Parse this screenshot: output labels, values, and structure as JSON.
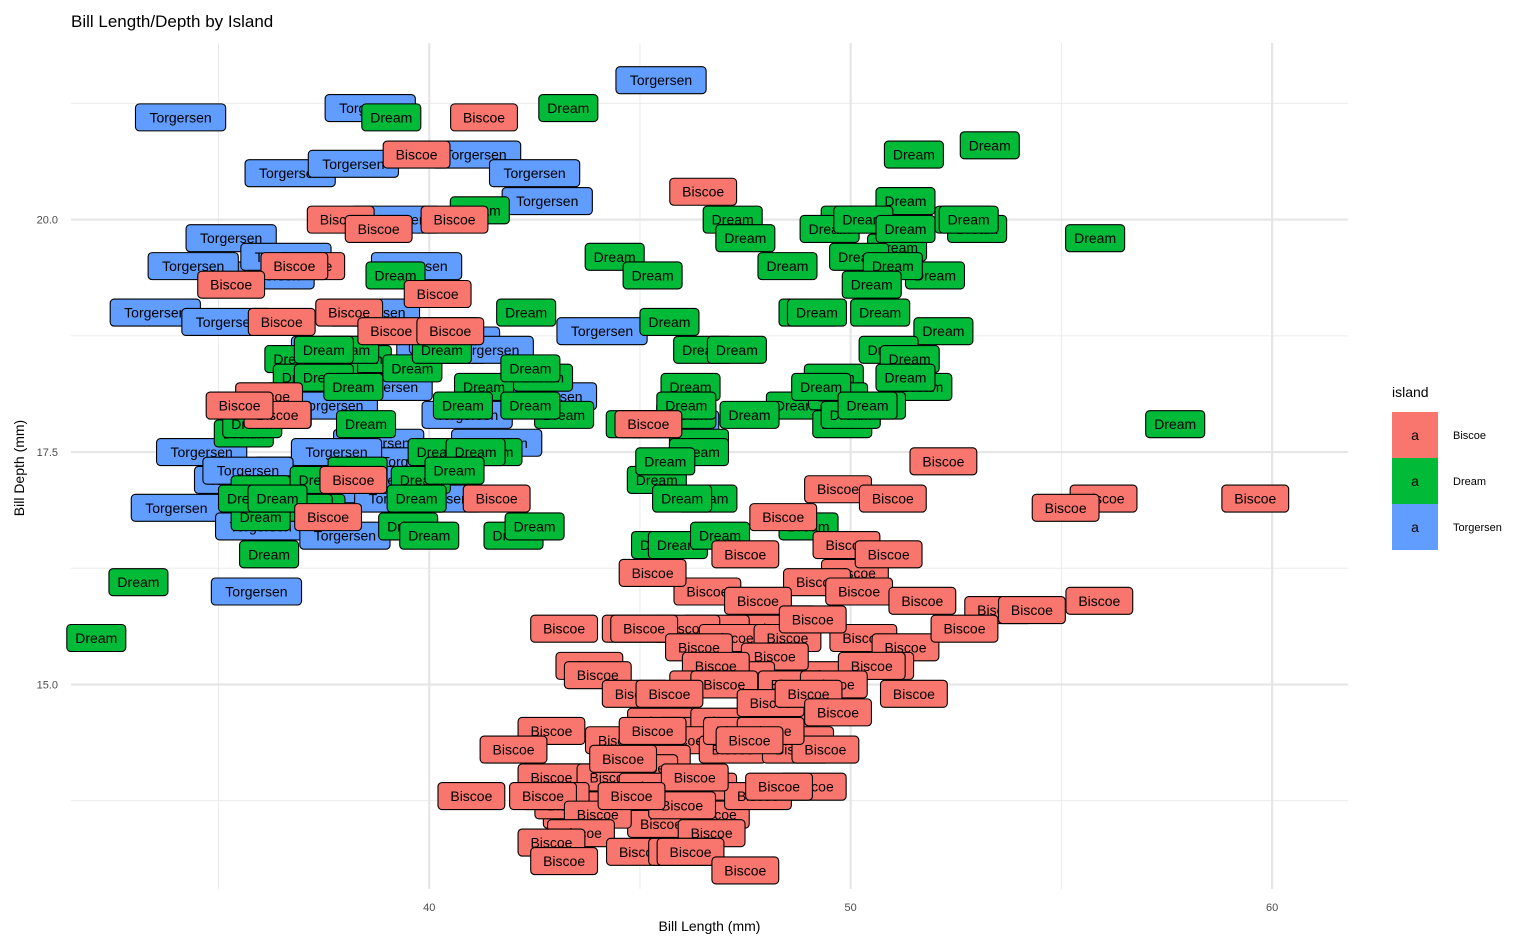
{
  "chart_data": {
    "type": "scatter",
    "geom": "label",
    "title": "Bill Length/Depth by Island",
    "xlabel": "Bill Length (mm)",
    "ylabel": "Bill Depth (mm)",
    "xlim": [
      31.5,
      61.8
    ],
    "ylim": [
      12.8,
      21.9
    ],
    "xticks": [
      40,
      50,
      60
    ],
    "xtick_labels": [
      "40",
      "50",
      "60"
    ],
    "yticks": [
      15.0,
      17.5,
      20.0
    ],
    "ytick_labels": [
      "15.0",
      "17.5",
      "20.0"
    ],
    "grid": true,
    "legend": {
      "title": "island",
      "position": "right",
      "key_symbol": "a",
      "entries": [
        "Biscoe",
        "Dream",
        "Torgersen"
      ]
    },
    "colors": {
      "Biscoe": "#F8766D",
      "Dream": "#00BA38",
      "Torgersen": "#619CFF"
    },
    "series": [
      {
        "name": "Torgersen",
        "x": [
          45.5,
          34.1,
          38.6,
          41.1,
          36.7,
          42.5,
          38.2,
          39.2,
          35.3,
          42.8,
          33.5,
          36.2,
          39.7,
          36.6,
          34.4,
          37.8,
          40.3,
          38.7,
          44.1,
          35.2,
          40.6,
          39.0,
          41.4,
          40.9,
          37.2,
          37.7,
          38.8,
          36.9,
          38.9,
          34.6,
          37.3,
          35.5,
          34.0,
          36.0,
          39.6,
          39.3,
          41.6,
          39.1,
          40.2,
          38.0,
          42.9,
          35.9,
          45.8,
          37.8,
          35.7
        ],
        "y": [
          21.5,
          21.1,
          21.2,
          20.7,
          20.5,
          20.5,
          20.6,
          20.0,
          19.8,
          20.2,
          19.0,
          19.4,
          19.5,
          19.6,
          19.5,
          18.6,
          18.6,
          19.0,
          18.8,
          18.9,
          18.7,
          18.2,
          18.6,
          17.9,
          18.1,
          18.0,
          17.6,
          17.3,
          17.2,
          17.5,
          17.1,
          17.2,
          16.9,
          16.7,
          17.4,
          17.0,
          17.6,
          17.2,
          17.0,
          16.6,
          18.1,
          16.0,
          17.8,
          17.5,
          17.3
        ]
      },
      {
        "name": "Dream",
        "x": [
          43.3,
          39.1,
          41.2,
          41.3,
          44.4,
          45.3,
          47.2,
          51.5,
          53.3,
          51.3,
          50.0,
          49.5,
          51.1,
          52.7,
          50.3,
          53.0,
          55.8,
          48.5,
          52.0,
          50.2,
          51.0,
          50.5,
          49.0,
          42.3,
          45.7,
          40.5,
          38.4,
          37.6,
          39.6,
          36.8,
          38.1,
          40.3,
          37.0,
          42.7,
          46.5,
          47.3,
          49.2,
          50.7,
          52.2,
          50.9,
          51.4,
          48.7,
          51.7,
          49.6,
          50.6,
          49.7,
          50.0,
          49.8,
          40.8,
          43.2,
          37.5,
          36.2,
          40.2,
          44.9,
          39.8,
          35.6,
          38.3,
          36.3,
          39.7,
          37.3,
          46.4,
          45.2,
          46.1,
          46.4,
          47.6,
          41.5,
          45.4,
          52.8,
          51.3,
          47.5,
          49.3,
          50.0,
          39.2,
          33.1,
          36.0,
          37.0,
          41.1,
          42.0,
          39.5,
          37.4,
          40.0,
          45.5,
          49.0,
          50.4,
          45.9,
          46.6,
          45.6,
          46.2,
          46.9,
          42.5,
          46.0,
          38.2,
          36.0,
          36.5,
          42.4,
          35.7,
          32.1,
          57.7,
          36.2,
          42.4,
          35.8,
          40.6,
          46.1,
          36.4,
          51.3,
          38.5,
          37.5
        ],
        "y": [
          21.2,
          21.1,
          20.1,
          18.2,
          19.6,
          19.4,
          20.0,
          20.7,
          20.8,
          20.2,
          20.0,
          19.9,
          19.7,
          20.0,
          20.0,
          19.9,
          19.8,
          19.5,
          19.4,
          19.6,
          19.5,
          19.3,
          19.0,
          19.0,
          18.9,
          18.8,
          18.5,
          18.4,
          18.4,
          18.5,
          18.6,
          18.6,
          18.3,
          18.3,
          18.6,
          18.6,
          19.0,
          19.0,
          18.8,
          18.6,
          18.5,
          18.0,
          18.2,
          18.3,
          18.0,
          18.1,
          17.9,
          17.8,
          18.0,
          17.9,
          18.3,
          17.9,
          17.5,
          17.8,
          17.2,
          17.7,
          17.3,
          17.1,
          17.0,
          16.9,
          17.6,
          17.8,
          17.9,
          17.5,
          17.9,
          17.5,
          17.2,
          20.0,
          19.9,
          19.8,
          18.2,
          17.9,
          19.4,
          16.1,
          17.1,
          16.9,
          17.5,
          16.6,
          16.7,
          17.2,
          16.6,
          16.5,
          16.7,
          18.0,
          16.5,
          17.0,
          17.4,
          18.2,
          16.6,
          16.7,
          17.0,
          18.2,
          16.8,
          17.9,
          18.0,
          17.0,
          15.5,
          17.8,
          16.4,
          18.4,
          17.8,
          17.3,
          18.0,
          17.0,
          18.3,
          17.8,
          18.6
        ]
      },
      {
        "name": "Biscoe",
        "x": [
          41.3,
          39.7,
          46.5,
          37.9,
          40.6,
          38.8,
          37.2,
          36.8,
          35.3,
          36.5,
          40.2,
          38.1,
          39.1,
          40.5,
          36.2,
          36.4,
          35.5,
          38.2,
          41.6,
          37.6,
          45.2,
          49.7,
          51.0,
          52.2,
          56.0,
          55.1,
          59.6,
          48.4,
          49.9,
          50.1,
          50.9,
          49.2,
          47.5,
          46.6,
          50.2,
          51.7,
          48.4,
          48.2,
          46.8,
          47.8,
          46.1,
          44.9,
          45.1,
          47.2,
          46.4,
          48.5,
          45.3,
          43.2,
          50.3,
          51.3,
          49.1,
          49.5,
          48.2,
          47.4,
          46.8,
          46.5,
          45.6,
          43.8,
          47.0,
          48.6,
          50.7,
          53.5,
          55.9,
          54.3,
          52.7,
          50.5,
          49.6,
          44.0,
          45.5,
          46.2,
          47.0,
          48.4,
          48.8,
          46.0,
          45.4,
          48.1,
          49.0,
          49.7,
          47.2,
          45.1,
          43.3,
          44.5,
          47.3,
          48.7,
          49.1,
          46.5,
          44.9,
          42.9,
          41.0,
          43.5,
          45.2,
          46.8,
          45.5,
          43.9,
          44.3,
          45.3,
          43.3,
          43.0,
          42.7,
          44.6,
          42.9,
          42.0,
          47.8,
          44.0,
          43.6,
          46.7,
          42.9,
          43.2,
          45.0,
          46.0,
          48.3,
          49.4,
          45.3,
          51.5,
          48.1,
          47.6,
          46.3,
          45.7,
          46.0,
          44.8,
          46.2,
          47.5
        ],
        "y": [
          21.1,
          20.7,
          20.3,
          20.0,
          20.0,
          19.9,
          19.5,
          19.5,
          19.3,
          18.9,
          19.2,
          19.0,
          18.8,
          18.8,
          18.1,
          17.9,
          18.0,
          17.2,
          17.0,
          16.8,
          17.8,
          17.1,
          17.0,
          17.4,
          17.0,
          16.9,
          17.0,
          16.8,
          16.5,
          16.2,
          16.4,
          16.1,
          16.4,
          16.0,
          16.0,
          15.9,
          15.7,
          15.6,
          15.6,
          15.9,
          15.6,
          15.6,
          15.6,
          15.5,
          15.4,
          15.5,
          16.2,
          15.6,
          15.5,
          15.4,
          15.7,
          15.1,
          15.3,
          15.1,
          15.2,
          15.0,
          14.8,
          15.2,
          15.0,
          15.0,
          15.2,
          15.8,
          15.9,
          15.8,
          15.6,
          15.2,
          15.0,
          15.1,
          14.6,
          14.5,
          14.6,
          14.6,
          14.4,
          14.4,
          14.2,
          14.8,
          14.9,
          14.7,
          14.3,
          14.1,
          14.0,
          14.4,
          14.5,
          14.3,
          13.9,
          13.9,
          14.9,
          14.0,
          13.8,
          13.6,
          13.8,
          13.6,
          13.5,
          13.8,
          14.0,
          13.9,
          13.7,
          13.8,
          13.8,
          14.2,
          14.5,
          14.3,
          13.8,
          13.6,
          13.4,
          13.4,
          13.3,
          13.1,
          13.2,
          13.2,
          13.9,
          14.3,
          14.5,
          14.9,
          14.5,
          14.4,
          14.0,
          14.9,
          13.7,
          13.8,
          13.2,
          13.0
        ]
      }
    ]
  }
}
